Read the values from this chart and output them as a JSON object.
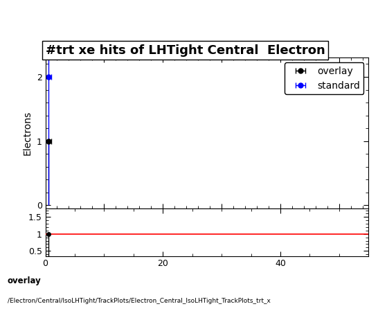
{
  "title_text": "#trt xe hits of LHTight Central  Electron",
  "ylabel_main": "Electrons",
  "overlay_x": [
    0.5
  ],
  "overlay_y": [
    1.0
  ],
  "standard_x": [
    0.5
  ],
  "standard_y": [
    2.0
  ],
  "overlay_color": "#000000",
  "standard_color": "#0000ff",
  "xlim": [
    0,
    55
  ],
  "ylim_main": [
    -0.05,
    2.3
  ],
  "ylim_ratio": [
    0.35,
    1.75
  ],
  "ratio_line_y": 1.0,
  "ratio_line_color": "#ff0000",
  "ratio_x": [
    0.5
  ],
  "ratio_y": [
    1.0
  ],
  "ratio_marker_color": "#000000",
  "yticks_main": [
    0,
    1,
    2
  ],
  "yticks_ratio": [
    0.5,
    1.0,
    1.5
  ],
  "xticks_ratio": [
    0,
    20,
    40
  ],
  "legend_overlay": "overlay",
  "legend_standard": "standard",
  "footer_line1": "overlay",
  "footer_line2": "/Electron/Central/IsoLHTight/TrackPlots/Electron_Central_IsoLHTight_TrackPlots_trt_x",
  "background_color": "#ffffff",
  "title_fontsize": 13,
  "axis_fontsize": 10,
  "tick_fontsize": 9,
  "legend_fontsize": 10,
  "error_cap": 0.1,
  "marker_size": 5
}
